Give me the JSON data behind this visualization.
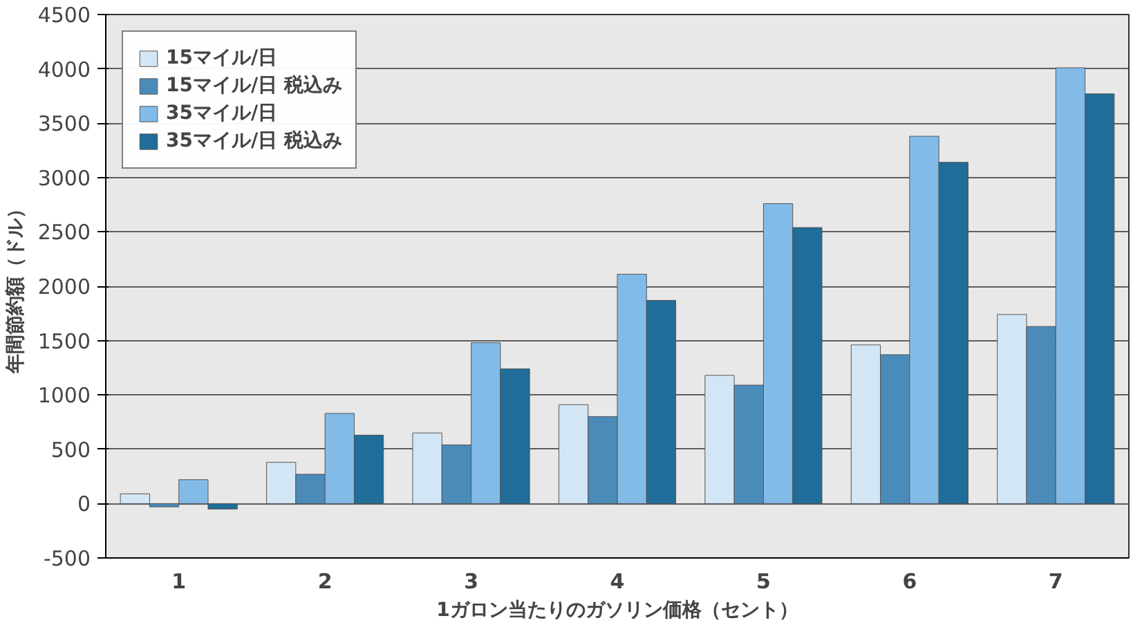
{
  "chart_data": {
    "type": "bar",
    "xlabel": "1ガロン当たりのガソリン価格（セント）",
    "ylabel": "年間節約額（ドル）",
    "categories": [
      "1",
      "2",
      "3",
      "4",
      "5",
      "6",
      "7"
    ],
    "series": [
      {
        "name": "15マイル/日",
        "color": "#d3e6f6",
        "values": [
          90,
          380,
          650,
          910,
          1180,
          1460,
          1740
        ]
      },
      {
        "name": "15マイル/日 税込み",
        "color": "#4b8bb9",
        "values": [
          -30,
          270,
          540,
          800,
          1090,
          1370,
          1630
        ]
      },
      {
        "name": "35マイル/日",
        "color": "#82bbe8",
        "values": [
          220,
          830,
          1480,
          2110,
          2760,
          3380,
          4010
        ]
      },
      {
        "name": "35マイル/日 税込み",
        "color": "#1f6d98",
        "values": [
          -50,
          630,
          1240,
          1870,
          2540,
          3140,
          3770
        ]
      }
    ],
    "ylim": [
      -500,
      4500
    ],
    "yticks": [
      -500,
      0,
      500,
      1000,
      1500,
      2000,
      2500,
      3000,
      3500,
      4000,
      4500
    ],
    "grid": "y",
    "legend": "top left"
  }
}
